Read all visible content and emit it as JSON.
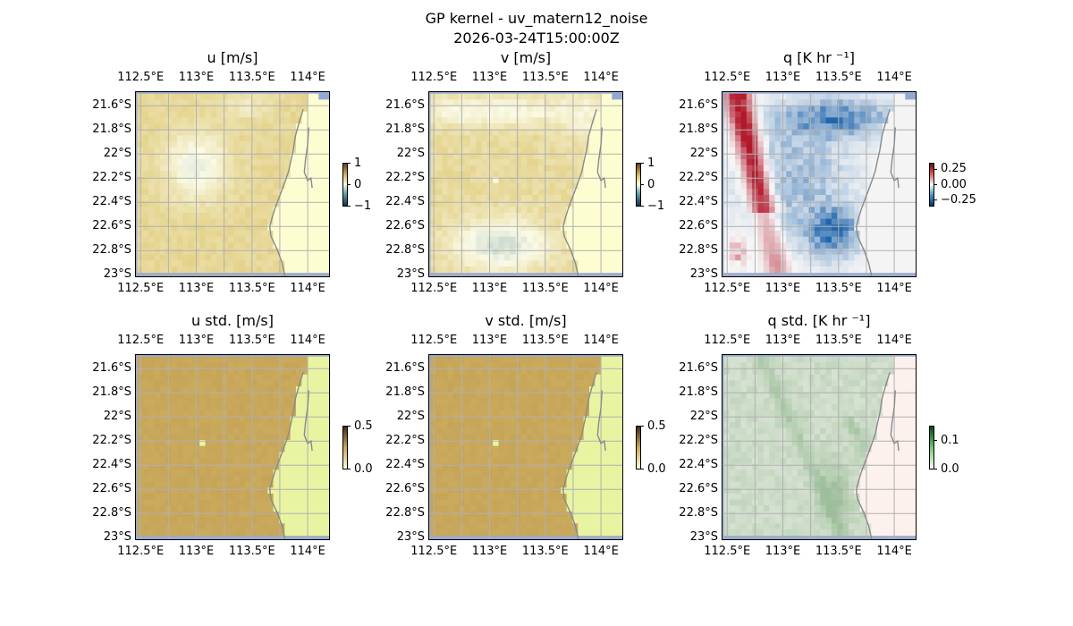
{
  "figure": {
    "title_line1": "GP kernel - uv_matern12_noise",
    "title_line2": "2026-03-24T15:00:00Z"
  },
  "axes": {
    "lon_ticks": [
      112.5,
      113.0,
      113.5,
      114.0
    ],
    "lon_tick_labels": [
      "112.5°E",
      "113°E",
      "113.5°E",
      "114°E"
    ],
    "lat_ticks": [
      -21.6,
      -21.8,
      -22.0,
      -22.2,
      -22.4,
      -22.6,
      -22.8,
      -23.0
    ],
    "lat_tick_labels": [
      "21.6°S",
      "21.8°S",
      "22°S",
      "22.2°S",
      "22.4°S",
      "22.6°S",
      "22.8°S",
      "23°S"
    ],
    "lon_range": [
      112.45,
      114.2
    ],
    "lat_range": [
      -23.02,
      -21.48
    ]
  },
  "colors": {
    "ocean_border": "#94a8d4",
    "coastline": "#8a8a8a",
    "gridline": "#b0b0b0",
    "land_uv_mean": "#fdfdd2",
    "land_uv_std": "#e8f4a2",
    "land_q_mean": "#f4f4f4",
    "land_q_std": "#fdf1ee",
    "uv_yellow": "#dcc46a",
    "uv_grey": "#c4d4cc",
    "std_ochre": "#c8a85a",
    "q_red": "#b2182b",
    "q_blue": "#2166ac",
    "q_std_green": "#9dbf9a"
  },
  "chart_data": [
    {
      "type": "heatmap",
      "title": "u [m/s]",
      "field": "u",
      "colormap": "diverging-teal-white-yellow",
      "colorbar_ticks": [
        1,
        0,
        -1
      ],
      "colorbar_tick_labels": [
        "1",
        "0",
        "−1"
      ],
      "vmin": -1,
      "vmax": 1,
      "land_key": "land_uv_mean",
      "features": "mostly 0.2–0.6 (yellow); grey-green patch near 113.0°E 22.1°S; light blob at 113.05°E 22.2°S"
    },
    {
      "type": "heatmap",
      "title": "v [m/s]",
      "field": "v",
      "colormap": "diverging-teal-white-yellow",
      "colorbar_ticks": [
        1,
        0,
        -1
      ],
      "colorbar_tick_labels": [
        "1",
        "0",
        "−1"
      ],
      "vmin": -1,
      "vmax": 1,
      "land_key": "land_uv_mean",
      "features": "north light, center yellow, south grey-green near 113.1°E 22.7°S"
    },
    {
      "type": "heatmap",
      "title": "q [K hr ⁻¹]",
      "field": "q",
      "colormap": "RdBu_r",
      "colorbar_ticks": [
        0.25,
        0.0,
        -0.25
      ],
      "colorbar_tick_labels": [
        "0.25",
        "0.00",
        "−0.25"
      ],
      "vmin": -0.35,
      "vmax": 0.35,
      "land_key": "land_q_mean",
      "features": "red diagonal band in the NW; blue in north-east and near 113.4°E 22.6°S"
    },
    {
      "type": "heatmap",
      "title": "u std. [m/s]",
      "field": "u_std",
      "colormap": "sequential",
      "colorbar_ticks": [
        0.5,
        0.0
      ],
      "colorbar_tick_labels": [
        "0.5",
        "0.0"
      ],
      "vmin": 0.0,
      "vmax": 0.5,
      "land_key": "land_uv_std",
      "features": "uniform ochre over ocean; light land; light blob near 113.05°E 22.2°S"
    },
    {
      "type": "heatmap",
      "title": "v std. [m/s]",
      "field": "v_std",
      "colormap": "sequential",
      "colorbar_ticks": [
        0.5,
        0.0
      ],
      "colorbar_tick_labels": [
        "0.5",
        "0.0"
      ],
      "vmin": 0.0,
      "vmax": 0.5,
      "land_key": "land_uv_std",
      "features": "uniform ochre over ocean; light land; light blob near 113.05°E 22.2°S"
    },
    {
      "type": "heatmap",
      "title": "q std. [K hr ⁻¹]",
      "field": "q_std",
      "colormap": "sequential-green",
      "colorbar_ticks": [
        0.1,
        0.0
      ],
      "colorbar_tick_labels": [
        "0.1",
        "0.0"
      ],
      "vmin": 0.0,
      "vmax": 0.15,
      "land_key": "land_q_std",
      "features": "faint green streaks, darker near 113.5°E 22.6–22.8°S"
    }
  ]
}
